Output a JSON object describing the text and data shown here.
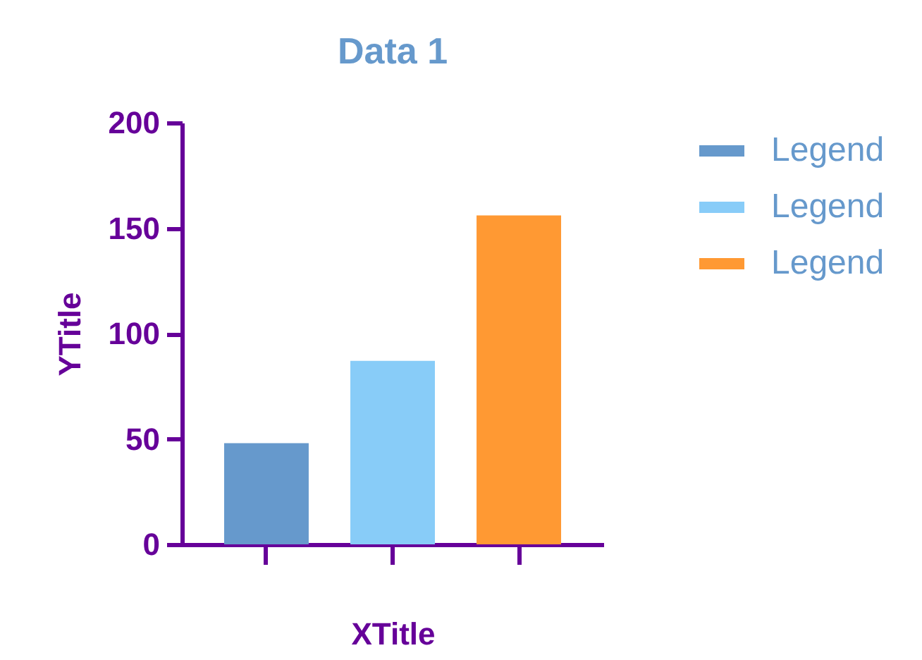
{
  "chart_data": {
    "type": "bar",
    "title": "Data 1",
    "xlabel": "XTitle",
    "ylabel": "YTitle",
    "categories": [
      null,
      null,
      null
    ],
    "series": [
      {
        "name": "Legend",
        "color": "#6699cc",
        "values": [
          48,
          null,
          null
        ]
      },
      {
        "name": "Legend",
        "color": "#88ccf8",
        "values": [
          null,
          87,
          null
        ]
      },
      {
        "name": "Legend",
        "color": "#ff9933",
        "values": [
          null,
          null,
          156
        ]
      }
    ],
    "ylim": [
      0,
      200
    ],
    "yticks": [
      0,
      50,
      100,
      150,
      200
    ],
    "legend": "top right",
    "tick_labels": "y",
    "grid": false
  }
}
